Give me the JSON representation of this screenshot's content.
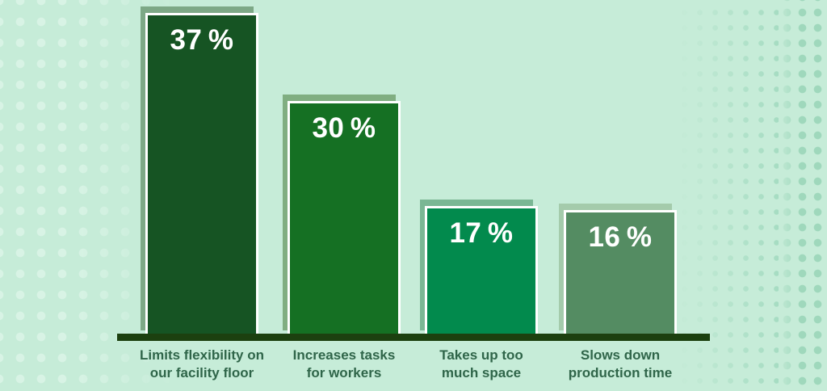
{
  "page": {
    "background_color": "#c6ecd8",
    "decorations": {
      "left_dot_pattern_color": "#d8f3e5",
      "right_dot_pattern_color": "#a6dcc2"
    }
  },
  "chart_data": {
    "type": "bar",
    "title": "",
    "categories": [
      "Limits flexibility on our facility floor",
      "Increases tasks for workers",
      "Takes up too much space",
      "Slows down production time"
    ],
    "values": [
      37,
      30,
      17,
      16
    ],
    "unit": "%",
    "value_labels": [
      "37 %",
      "30 %",
      "17 %",
      "16 %"
    ],
    "categories_wrapped": [
      "Limits flexibility on\nour facility floor",
      "Increases tasks\nfor workers",
      "Takes up too\nmuch space",
      "Slows down\nproduction time"
    ],
    "xlabel": "",
    "ylabel": "",
    "ylim": [
      0,
      40
    ],
    "grid": false,
    "legend": false,
    "y_axis_shown": false,
    "bar_colors": [
      "#165423",
      "#157023",
      "#028a4d",
      "#548c62"
    ],
    "bar_shadow_colors": [
      "#7da886",
      "#80ae81",
      "#7ab794",
      "#a4cbab"
    ],
    "bar_border_color": "#ffffff",
    "axis_line_color": "#1c400f",
    "category_label_color": "#2f6549",
    "value_label_color": "#ffffff"
  }
}
